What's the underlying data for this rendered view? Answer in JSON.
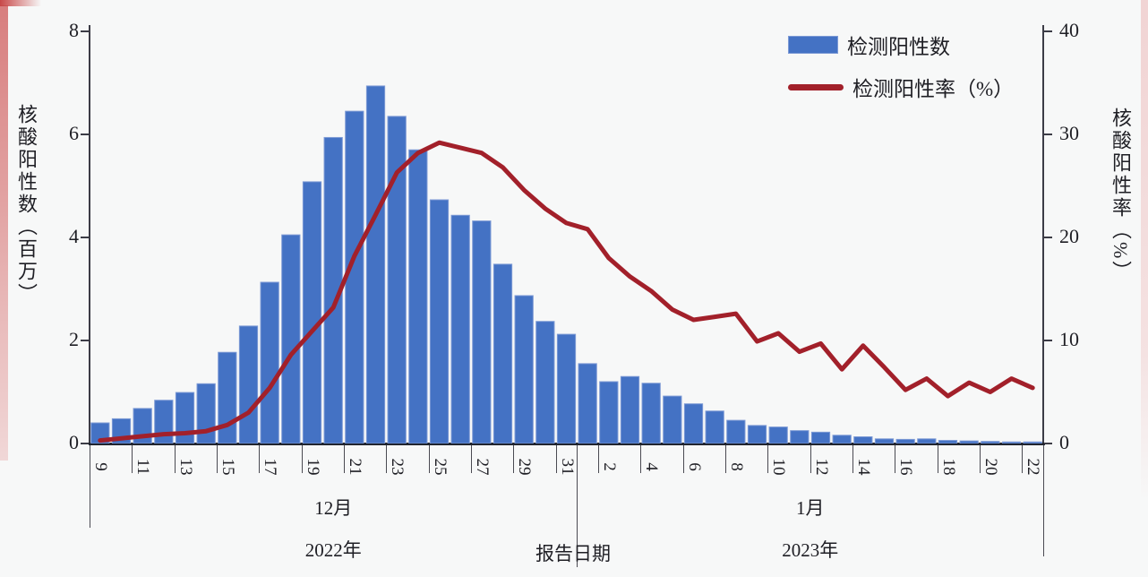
{
  "chart_data": {
    "type": "bar+line combo",
    "x": {
      "axis_title": "报告日期",
      "sections": [
        {
          "month_label": "12月",
          "year_label": "2022年",
          "first_day": 9,
          "num_days": 23,
          "labeled_days": [
            9,
            11,
            13,
            15,
            17,
            19,
            21,
            23,
            25,
            27,
            29,
            31
          ]
        },
        {
          "month_label": "1月",
          "year_label": "2023年",
          "first_day": 1,
          "num_days": 22,
          "labeled_days": [
            2,
            4,
            6,
            8,
            10,
            12,
            14,
            16,
            18,
            20,
            22
          ]
        }
      ]
    },
    "left_axis": {
      "title": "核酸阳性数（百万）",
      "ticks": [
        0,
        2,
        4,
        6,
        8
      ],
      "max": 8
    },
    "right_axis": {
      "title": "核酸阳性率（%）",
      "ticks": [
        0,
        10,
        20,
        30,
        40
      ],
      "max": 40
    },
    "series": [
      {
        "name": "检测阳性数",
        "type": "bar",
        "y_axis": "left",
        "color": "#4472C4",
        "values": [
          0.4,
          0.48,
          0.68,
          0.84,
          0.99,
          1.16,
          1.77,
          2.28,
          3.13,
          4.05,
          5.08,
          5.94,
          6.45,
          6.94,
          6.35,
          5.7,
          4.73,
          4.43,
          4.32,
          3.48,
          2.87,
          2.37,
          2.12,
          1.55,
          1.2,
          1.3,
          1.17,
          0.92,
          0.77,
          0.63,
          0.45,
          0.35,
          0.32,
          0.25,
          0.22,
          0.16,
          0.13,
          0.09,
          0.08,
          0.09,
          0.06,
          0.05,
          0.04,
          0.03,
          0.03
        ]
      },
      {
        "name": "检测阳性率（%）",
        "type": "line",
        "y_axis": "right",
        "color": "#A2202A",
        "values": [
          0.3,
          0.5,
          0.7,
          0.9,
          1.0,
          1.2,
          1.8,
          3.0,
          5.4,
          8.6,
          10.9,
          13.2,
          18.2,
          22.2,
          26.3,
          28.2,
          29.2,
          28.7,
          28.2,
          26.8,
          24.6,
          22.8,
          21.4,
          20.8,
          18.0,
          16.2,
          14.8,
          13.0,
          12.0,
          12.3,
          12.6,
          9.9,
          10.7,
          8.9,
          9.7,
          7.2,
          9.5,
          7.4,
          5.2,
          6.3,
          4.6,
          5.9,
          5.0,
          6.3,
          5.4
        ]
      }
    ],
    "grid": "off",
    "legend_position": "top-right"
  },
  "legend": {
    "bar_label": "检测阳性数",
    "line_label": "检测阳性率（%）"
  },
  "labels": {
    "report_date": "报告日期"
  }
}
